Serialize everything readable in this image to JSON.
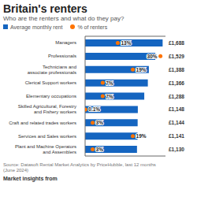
{
  "chart_data": {
    "type": "bar",
    "orientation": "horizontal",
    "title": "Britain's renters",
    "subtitle": "Who are the renters and what do they pay?",
    "categories": [
      "Managers",
      "Professionals",
      "Technicians and\nassociate professionals",
      "Clerical Support workers",
      "Elementary occupations",
      "Skilled Agricultural, Forestry\nand Fishery workers",
      "Craft and related trades workers",
      "Services and Sales workers",
      "Plant and Machine Operators\nand Assemblers"
    ],
    "series": [
      {
        "name": "Average monthly rent",
        "type": "bar",
        "color": "#1565c0",
        "values": [
          1688,
          1529,
          1388,
          1366,
          1288,
          1148,
          1144,
          1141,
          1130
        ],
        "value_labels": [
          "£1,688",
          "£1,529",
          "£1,388",
          "£1,366",
          "£1,288",
          "£1,148",
          "£1,144",
          "£1,141",
          "£1,130"
        ]
      },
      {
        "name": "% of renters",
        "type": "scatter",
        "axis": "y2",
        "color": "#ff7300",
        "marker": "circle",
        "values": [
          13,
          30,
          19,
          7,
          7,
          0.1,
          3,
          19,
          3
        ],
        "value_labels": [
          "13%",
          "30%",
          "19%",
          "7%",
          "7%",
          "0.1%",
          "3%",
          "19%",
          "3%"
        ]
      }
    ],
    "ylim": [
      0,
      1750
    ],
    "y2lim": [
      0,
      32
    ],
    "grid": false,
    "data_labels": true,
    "tick_labels": "x",
    "annotations": [
      "Source: Datasoft Rental Market Analytics by PriceHubble, last 12 months\n(June 2024)",
      "Market insights from"
    ]
  }
}
